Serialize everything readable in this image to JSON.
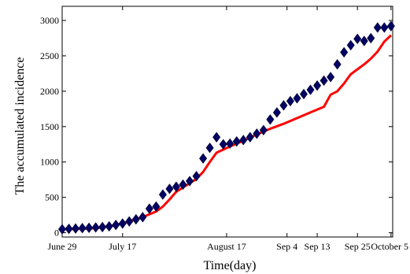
{
  "chart_data": {
    "type": "line",
    "title": "",
    "xlabel": "Time(day)",
    "ylabel": "The accumulated incidence",
    "x_tick_labels": [
      {
        "day": 0,
        "label": "June 29"
      },
      {
        "day": 18,
        "label": "July 17"
      },
      {
        "day": 49,
        "label": "August 17"
      },
      {
        "day": 67,
        "label": "Sep 4"
      },
      {
        "day": 76,
        "label": "Sep 13"
      },
      {
        "day": 88,
        "label": "Sep 25"
      },
      {
        "day": 98,
        "label": "October 5"
      }
    ],
    "xlim": [
      0,
      98.5
    ],
    "ylim": [
      -60,
      3200
    ],
    "yticks": [
      0,
      500,
      1000,
      1500,
      2000,
      2500,
      3000
    ],
    "grid": false,
    "series": [
      {
        "marker": "diamond",
        "color": "#000066",
        "x": [
          0,
          2,
          4,
          6,
          8,
          10,
          12,
          14,
          16,
          18,
          20,
          22,
          24,
          26,
          28,
          30,
          32,
          34,
          36,
          38,
          40,
          42,
          44,
          46,
          48,
          50,
          52,
          54,
          56,
          58,
          60,
          62,
          64,
          66,
          68,
          70,
          72,
          74,
          76,
          78,
          80,
          82,
          84,
          86,
          88,
          90,
          92,
          94,
          96,
          98
        ],
        "y": [
          50,
          55,
          60,
          65,
          70,
          75,
          80,
          90,
          110,
          130,
          160,
          190,
          220,
          340,
          370,
          540,
          620,
          650,
          680,
          730,
          800,
          1050,
          1200,
          1350,
          1250,
          1260,
          1290,
          1310,
          1350,
          1400,
          1450,
          1600,
          1700,
          1800,
          1860,
          1900,
          1960,
          2020,
          2080,
          2150,
          2200,
          2380,
          2550,
          2650,
          2740,
          2710,
          2750,
          2900,
          2900,
          2920
        ]
      },
      {
        "style": "solid-line",
        "color": "#ff0000",
        "x": [
          0,
          4,
          8,
          12,
          16,
          20,
          24,
          28,
          30,
          32,
          34,
          36,
          38,
          40,
          42,
          44,
          46,
          50,
          54,
          58,
          62,
          66,
          70,
          74,
          78,
          80,
          82,
          84,
          86,
          88,
          90,
          92,
          94,
          96,
          98
        ],
        "y": [
          50,
          52,
          60,
          75,
          110,
          160,
          220,
          300,
          370,
          470,
          580,
          640,
          700,
          760,
          860,
          1000,
          1130,
          1220,
          1300,
          1390,
          1470,
          1540,
          1620,
          1700,
          1780,
          1950,
          2000,
          2110,
          2240,
          2310,
          2380,
          2460,
          2560,
          2700,
          2790
        ]
      }
    ]
  }
}
